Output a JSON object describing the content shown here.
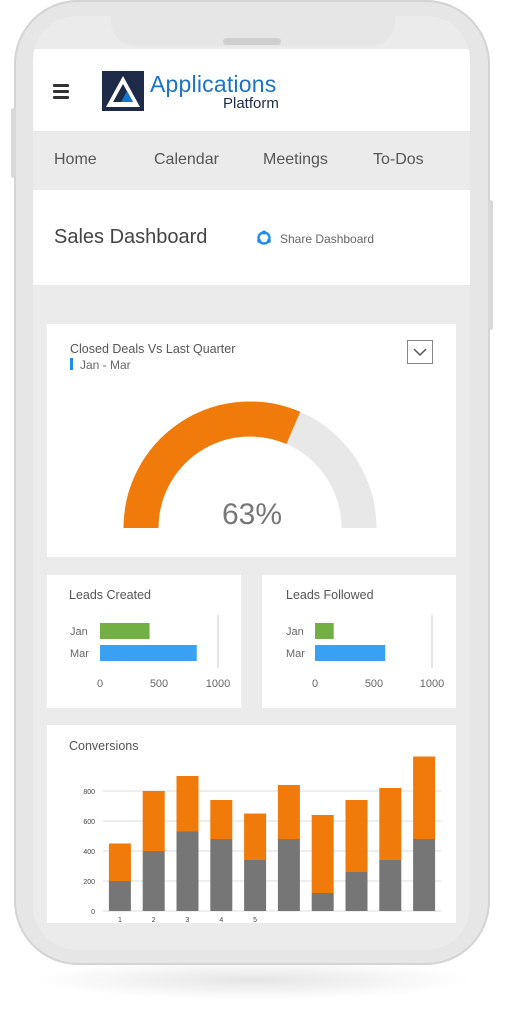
{
  "app": {
    "title": "Applications",
    "subtitle": "Platform"
  },
  "nav": {
    "items": [
      {
        "label": "Home"
      },
      {
        "label": "Calendar"
      },
      {
        "label": "Meetings"
      },
      {
        "label": "To-Dos"
      }
    ]
  },
  "header": {
    "title": "Sales Dashboard",
    "share_label": "Share Dashboard"
  },
  "icons": {
    "menu": "hamburger-menu-icon",
    "logo": "applications-logo-icon",
    "share": "share-icon",
    "dropdown": "chevron-down-icon"
  },
  "colors": {
    "primary": "#1a73c8",
    "navy": "#1d2b49",
    "orange": "#f07a0a",
    "green": "#72b043",
    "blue": "#3aa0f2",
    "gray_bar": "#767676",
    "gauge_track": "#e8e8e8"
  },
  "closed_deals": {
    "title": "Closed Deals Vs Last Quarter",
    "range": "Jan - Mar",
    "value_label": "63%",
    "value": 0.63
  },
  "chart_data": [
    {
      "type": "bar",
      "orientation": "horizontal",
      "title": "Leads Created",
      "categories": [
        "Jan",
        "Mar"
      ],
      "values": [
        420,
        820
      ],
      "colors": [
        "#72b043",
        "#3aa0f2"
      ],
      "xlim": [
        0,
        1000
      ],
      "ticks": [
        "0",
        "500",
        "1000"
      ]
    },
    {
      "type": "bar",
      "orientation": "horizontal",
      "title": "Leads Followed",
      "categories": [
        "Jan",
        "Mar"
      ],
      "values": [
        160,
        600
      ],
      "colors": [
        "#72b043",
        "#3aa0f2"
      ],
      "xlim": [
        0,
        1000
      ],
      "ticks": [
        "0",
        "500",
        "1000"
      ]
    },
    {
      "type": "bar",
      "stacked": true,
      "title": "Conversions",
      "x_tick_labels": [
        "1",
        "2",
        "3",
        "4",
        "5",
        "",
        "",
        "",
        "",
        ""
      ],
      "y_ticks": [
        "0",
        "200",
        "400",
        "600",
        "800"
      ],
      "ylim": [
        0,
        1000
      ],
      "series": [
        {
          "values": [
            200,
            400,
            530,
            480,
            340,
            480,
            120,
            260,
            340,
            480
          ],
          "color": "#767676"
        },
        {
          "values": [
            250,
            400,
            370,
            260,
            310,
            360,
            520,
            480,
            480,
            550
          ],
          "color": "#f07a0a"
        }
      ]
    }
  ]
}
